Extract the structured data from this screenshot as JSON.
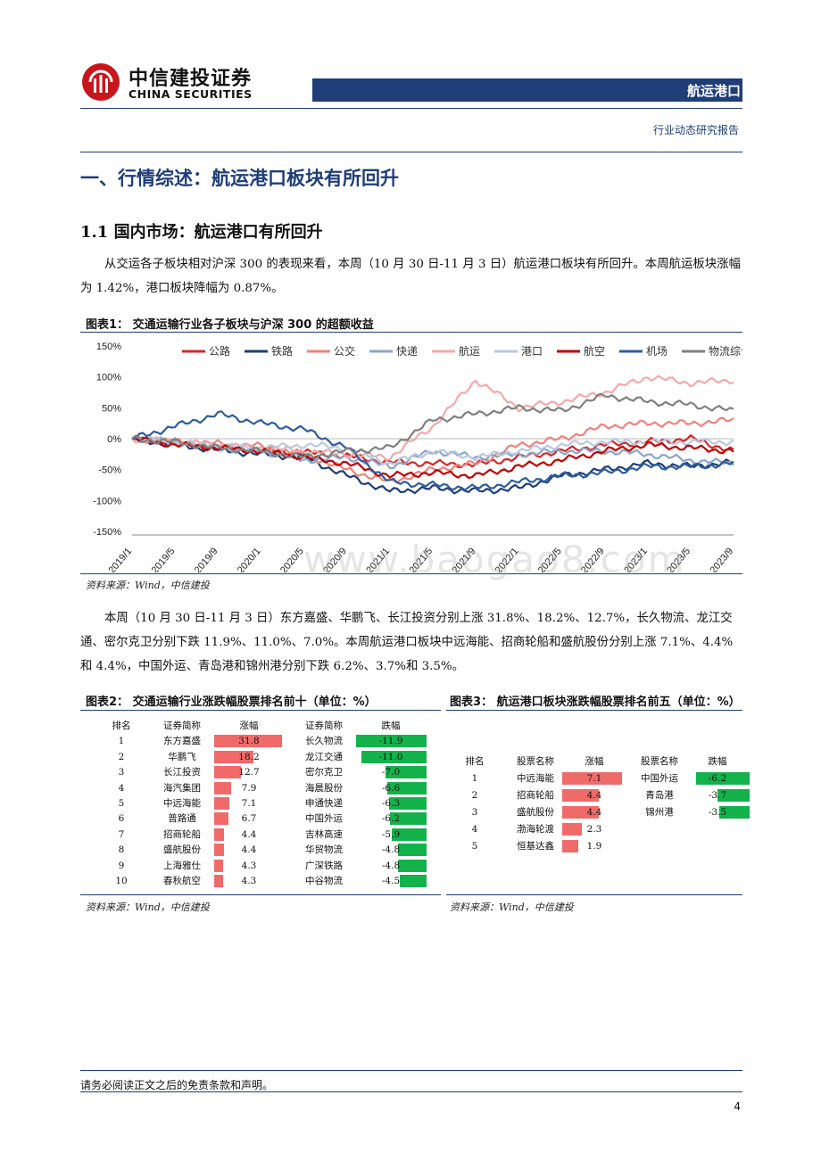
{
  "header": {
    "brand_cn": "中信建投证券",
    "brand_en": "CHINA SECURITIES",
    "section_tag": "航运港口",
    "report_type": "行业动态研究报告"
  },
  "heading1": "一、行情综述：航运港口板块有所回升",
  "heading2": "1.1 国内市场：航运港口有所回升",
  "para1": "从交运各子板块相对沪深 300 的表现来看，本周（10 月 30 日-11 月 3 日）航运港口板块有所回升。本周航运板块涨幅为 1.42%，港口板块降幅为 0.87%。",
  "para2": "本周（10 月 30 日-11 月 3 日）东方嘉盛、华鹏飞、长江投资分别上涨 31.8%、18.2%、12.7%，长久物流、龙江交通、密尔克卫分别下跌 11.9%、11.0%、7.0%。本周航运港口板块中远海能、招商轮船和盛航股份分别上涨 7.1%、4.4%和 4.4%，中国外运、青岛港和锦州港分别下跌 6.2%、3.7%和 3.5%。",
  "fig1": {
    "title": "图表1：   交通运输行业各子板块与沪深 300 的超额收益",
    "source": "资料来源：Wind，中信建投"
  },
  "fig2": {
    "title": "图表2：   交通运输行业涨跌幅股票排名前十（单位：%）",
    "source": "资料来源：Wind，中信建投",
    "headers": [
      "排名",
      "证券简称",
      "涨幅",
      "证券简称",
      "跌幅"
    ],
    "rows": [
      {
        "rank": "1",
        "up_name": "东方嘉盛",
        "up": "31.8",
        "dn_name": "长久物流",
        "dn": "-11.9"
      },
      {
        "rank": "2",
        "up_name": "华鹏飞",
        "up": "18.2",
        "dn_name": "龙江交通",
        "dn": "-11.0"
      },
      {
        "rank": "3",
        "up_name": "长江投资",
        "up": "12.7",
        "dn_name": "密尔克卫",
        "dn": "-7.0"
      },
      {
        "rank": "4",
        "up_name": "海汽集团",
        "up": "7.9",
        "dn_name": "海晨股份",
        "dn": "-6.6"
      },
      {
        "rank": "5",
        "up_name": "中远海能",
        "up": "7.1",
        "dn_name": "申通快递",
        "dn": "-6.3"
      },
      {
        "rank": "6",
        "up_name": "普路通",
        "up": "6.7",
        "dn_name": "中国外运",
        "dn": "-6.2"
      },
      {
        "rank": "7",
        "up_name": "招商轮船",
        "up": "4.4",
        "dn_name": "吉林高速",
        "dn": "-5.9"
      },
      {
        "rank": "8",
        "up_name": "盛航股份",
        "up": "4.4",
        "dn_name": "华贸物流",
        "dn": "-4.8"
      },
      {
        "rank": "9",
        "up_name": "上海雅仕",
        "up": "4.3",
        "dn_name": "广深铁路",
        "dn": "-4.8"
      },
      {
        "rank": "10",
        "up_name": "春秋航空",
        "up": "4.3",
        "dn_name": "中谷物流",
        "dn": "-4.5"
      }
    ]
  },
  "fig3": {
    "title": "图表3：   航运港口板块涨跌幅股票排名前五（单位：%）",
    "source": "资料来源：Wind，中信建投",
    "headers": [
      "排名",
      "股票名称",
      "涨幅",
      "股票名称",
      "跌幅"
    ],
    "rows": [
      {
        "rank": "1",
        "up_name": "中远海能",
        "up": "7.1",
        "dn_name": "中国外运",
        "dn": "-6.2"
      },
      {
        "rank": "2",
        "up_name": "招商轮船",
        "up": "4.4",
        "dn_name": "青岛港",
        "dn": "-3.7"
      },
      {
        "rank": "3",
        "up_name": "盛航股份",
        "up": "4.4",
        "dn_name": "锦州港",
        "dn": "-3.5"
      },
      {
        "rank": "4",
        "up_name": "渤海轮渡",
        "up": "2.3",
        "dn_name": "",
        "dn": ""
      },
      {
        "rank": "5",
        "up_name": "恒基达鑫",
        "up": "1.9",
        "dn_name": "",
        "dn": ""
      }
    ]
  },
  "chart_data": {
    "type": "line",
    "title": "",
    "xlabel": "",
    "ylabel": "",
    "ylim": [
      -150,
      150
    ],
    "yticks": [
      "150%",
      "100%",
      "50%",
      "0%",
      "-50%",
      "-100%",
      "-150%"
    ],
    "x": [
      "2019/1",
      "2019/5",
      "2019/9",
      "2020/1",
      "2020/5",
      "2020/9",
      "2021/1",
      "2021/5",
      "2021/9",
      "2022/1",
      "2022/5",
      "2022/9",
      "2023/1",
      "2023/5",
      "2023/9"
    ],
    "legend_position": "top",
    "grid": false,
    "series": [
      {
        "name": "公路",
        "color": "#d62728",
        "values": [
          0,
          -8,
          -14,
          -18,
          -22,
          -28,
          -38,
          -40,
          -42,
          -30,
          -20,
          -10,
          -5,
          0,
          -20
        ]
      },
      {
        "name": "铁路",
        "color": "#1f3e78",
        "values": [
          0,
          -10,
          -18,
          -25,
          -30,
          -60,
          -85,
          -80,
          -85,
          -80,
          -60,
          -50,
          -40,
          -45,
          -38
        ]
      },
      {
        "name": "公交",
        "color": "#f0827d",
        "values": [
          0,
          -5,
          -8,
          -12,
          -25,
          -50,
          -70,
          -50,
          -40,
          -10,
          0,
          20,
          25,
          25,
          30
        ]
      },
      {
        "name": "快递",
        "color": "#8ca5c8",
        "values": [
          0,
          -5,
          -15,
          -20,
          -35,
          -30,
          -45,
          -20,
          -30,
          -25,
          -20,
          -20,
          -25,
          -35,
          -40
        ]
      },
      {
        "name": "航运",
        "color": "#f4a9a8",
        "values": [
          0,
          -5,
          -10,
          -15,
          -20,
          -25,
          -30,
          20,
          95,
          50,
          60,
          75,
          100,
          90,
          95
        ]
      },
      {
        "name": "港口",
        "color": "#b9c9e0",
        "values": [
          0,
          -6,
          -12,
          -15,
          -10,
          -15,
          -40,
          -20,
          -30,
          -20,
          -10,
          -5,
          -5,
          -5,
          -5
        ]
      },
      {
        "name": "航空",
        "color": "#c00000",
        "values": [
          0,
          -10,
          -15,
          -20,
          -30,
          -40,
          -60,
          -55,
          -60,
          -45,
          -35,
          -20,
          -10,
          -15,
          -20
        ]
      },
      {
        "name": "机场",
        "color": "#2e5e9e",
        "values": [
          0,
          20,
          40,
          25,
          15,
          -15,
          -70,
          -75,
          -80,
          -70,
          -60,
          -55,
          -45,
          -45,
          -40
        ]
      },
      {
        "name": "物流综合",
        "color": "#808080",
        "values": [
          0,
          -5,
          -15,
          -20,
          -30,
          -20,
          -15,
          30,
          40,
          50,
          45,
          70,
          60,
          55,
          45
        ]
      }
    ]
  }
}
